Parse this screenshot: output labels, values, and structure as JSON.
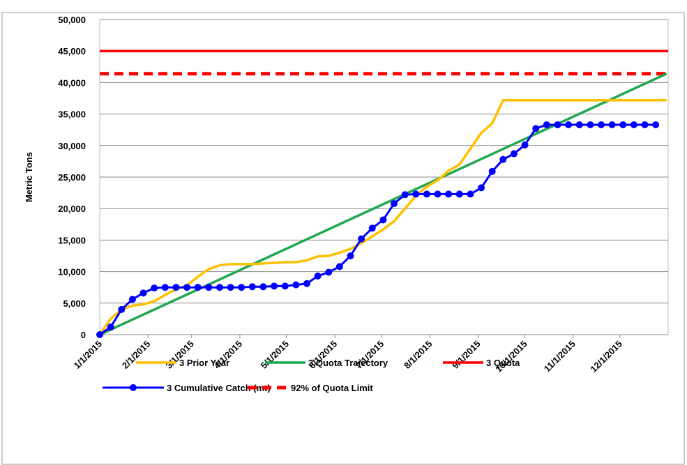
{
  "chart_data": {
    "type": "line",
    "y_label": "Metric Tons",
    "xlim": [
      "1/1/2015",
      "1/1/2016"
    ],
    "xticks": [
      "1/1/2015",
      "2/1/2015",
      "3/1/2015",
      "4/1/2015",
      "5/1/2015",
      "6/1/2015",
      "7/1/2015",
      "8/1/2015",
      "9/1/2015",
      "10/1/2015",
      "11/1/2015",
      "12/1/2015"
    ],
    "ylim": [
      0,
      50000
    ],
    "yticks": [
      0,
      {
        "value": 5000,
        "label": "5,000"
      },
      {
        "value": 10000,
        "label": "10,000"
      },
      {
        "value": 15000,
        "label": "15,000"
      },
      {
        "value": 20000,
        "label": "20,000"
      },
      {
        "value": 25000,
        "label": "25,000"
      },
      {
        "value": 30000,
        "label": "30,000"
      },
      {
        "value": 35000,
        "label": "35,000"
      },
      {
        "value": 40000,
        "label": "40,000"
      },
      {
        "value": 45000,
        "label": "45,000"
      },
      {
        "value": 50000,
        "label": "50,000"
      }
    ],
    "grid": true,
    "legend": "bottom",
    "series": [
      {
        "name": "3 Prior Year",
        "color": "#FFC000",
        "x": [
          "1/1/2015",
          "1/8/2015",
          "1/15/2015",
          "1/22/2015",
          "1/29/2015",
          "2/5/2015",
          "2/12/2015",
          "2/19/2015",
          "2/26/2015",
          "3/5/2015",
          "3/12/2015",
          "3/19/2015",
          "3/26/2015",
          "4/2/2015",
          "4/9/2015",
          "4/16/2015",
          "4/23/2015",
          "4/30/2015",
          "5/7/2015",
          "5/14/2015",
          "5/21/2015",
          "5/28/2015",
          "6/4/2015",
          "6/11/2015",
          "6/18/2015",
          "6/25/2015",
          "7/2/2015",
          "7/9/2015",
          "7/16/2015",
          "7/23/2015",
          "7/30/2015",
          "8/6/2015",
          "8/13/2015",
          "8/20/2015",
          "8/27/2015",
          "9/3/2015",
          "9/10/2015",
          "9/17/2015",
          "9/24/2015",
          "10/1/2015",
          "10/8/2015",
          "10/15/2015",
          "10/22/2015",
          "10/29/2015",
          "11/5/2015",
          "11/12/2015",
          "11/19/2015",
          "11/26/2015",
          "12/3/2015",
          "12/10/2015",
          "12/17/2015",
          "12/24/2015",
          "12/31/2015"
        ],
        "values": [
          0,
          2500,
          4000,
          4600,
          4800,
          5300,
          6300,
          7200,
          7800,
          9200,
          10400,
          11000,
          11200,
          11200,
          11200,
          11300,
          11400,
          11500,
          11500,
          11800,
          12400,
          12500,
          13000,
          13600,
          14500,
          15600,
          16700,
          18000,
          20000,
          22000,
          23500,
          24500,
          26000,
          27000,
          29500,
          32000,
          33500,
          37200,
          37200,
          37200,
          37200,
          37200,
          37200,
          37200,
          37200,
          37200,
          37200,
          37200,
          37200,
          37200,
          37200,
          37200,
          37200
        ]
      },
      {
        "name": "3 Quota Trajectory",
        "color": "#1FA84F",
        "x": [
          "1/1/2015",
          "12/31/2015"
        ],
        "values": [
          0,
          41400
        ]
      },
      {
        "name": "3 Quota",
        "color": "#FF0000",
        "x": [
          "1/1/2015",
          "1/1/2016"
        ],
        "values": [
          45000,
          45000
        ]
      },
      {
        "name": "3 Cumulative Catch (mt)",
        "color": "#0000FF",
        "marker": true,
        "x": [
          "1/1/2015",
          "1/8/2015",
          "1/15/2015",
          "1/22/2015",
          "1/29/2015",
          "2/5/2015",
          "2/12/2015",
          "2/19/2015",
          "2/26/2015",
          "3/5/2015",
          "3/12/2015",
          "3/19/2015",
          "3/26/2015",
          "4/2/2015",
          "4/9/2015",
          "4/16/2015",
          "4/23/2015",
          "4/30/2015",
          "5/7/2015",
          "5/14/2015",
          "5/21/2015",
          "5/28/2015",
          "6/4/2015",
          "6/11/2015",
          "6/18/2015",
          "6/25/2015",
          "7/2/2015",
          "7/9/2015",
          "7/16/2015",
          "7/23/2015",
          "7/30/2015",
          "8/6/2015",
          "8/13/2015",
          "8/20/2015",
          "8/27/2015",
          "9/3/2015",
          "9/10/2015",
          "9/17/2015",
          "9/24/2015",
          "10/1/2015",
          "10/8/2015",
          "10/15/2015",
          "10/22/2015",
          "10/29/2015",
          "11/5/2015",
          "11/12/2015",
          "11/19/2015",
          "11/26/2015",
          "12/3/2015",
          "12/10/2015",
          "12/17/2015",
          "12/24/2015"
        ],
        "values": [
          0,
          1200,
          4000,
          5600,
          6600,
          7400,
          7500,
          7500,
          7500,
          7500,
          7500,
          7500,
          7500,
          7500,
          7600,
          7600,
          7700,
          7700,
          7900,
          8100,
          9300,
          9900,
          10800,
          12500,
          15200,
          16900,
          18200,
          20800,
          22200,
          22300,
          22300,
          22300,
          22300,
          22300,
          22300,
          23300,
          25900,
          27800,
          28700,
          30100,
          32700,
          33300,
          33300,
          33300,
          33300,
          33300,
          33300,
          33300,
          33300,
          33300,
          33300,
          33300
        ]
      },
      {
        "name": "92% of Quota Limit",
        "color": "#FF0000",
        "dash": true,
        "x": [
          "1/1/2015",
          "1/1/2016"
        ],
        "values": [
          41400,
          41400
        ]
      }
    ]
  }
}
